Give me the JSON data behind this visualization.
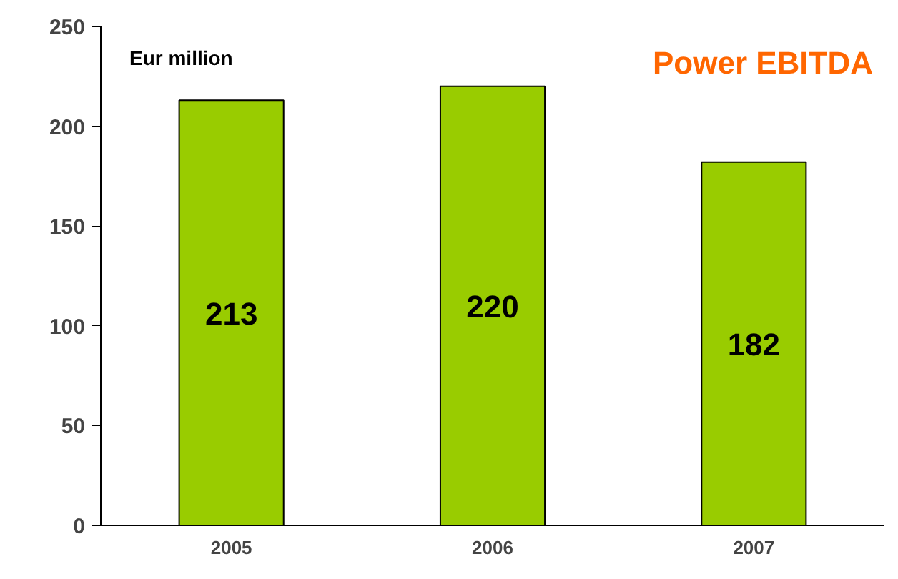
{
  "chart_data": {
    "type": "bar",
    "title": "Power EBITDA",
    "categories": [
      "2005",
      "2006",
      "2007"
    ],
    "values": [
      213,
      220,
      182
    ],
    "color": "#99cc00",
    "ylim": [
      0,
      250
    ],
    "yticks": [
      0,
      50,
      100,
      150,
      200,
      250
    ],
    "grid": false,
    "data_labels": true,
    "annotations": [
      "Eur million"
    ]
  }
}
